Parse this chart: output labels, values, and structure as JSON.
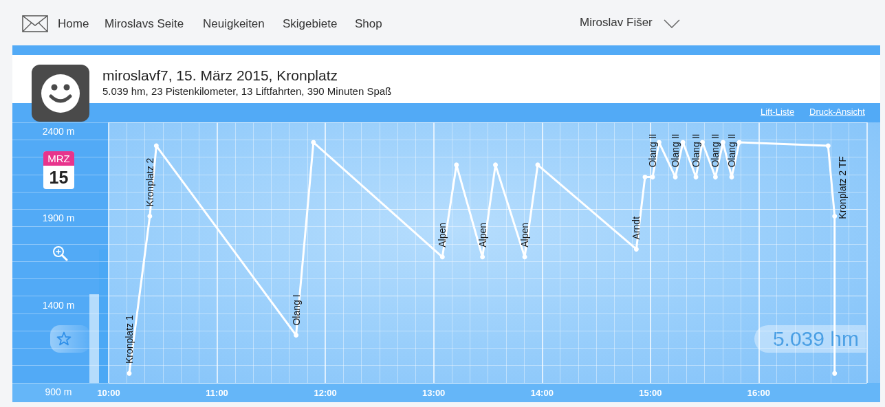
{
  "chart_data": {
    "type": "line",
    "title": "miroslavf7, 15. März 2015, Kronplatz",
    "subtitle": "5.039 hm, 23 Pistenkilometer, 13 Liftfahrten, 390 Minuten Spaß",
    "x": [
      10.19,
      10.38,
      10.44,
      11.73,
      11.89,
      13.08,
      13.21,
      13.45,
      13.57,
      13.84,
      13.96,
      14.87,
      14.95,
      15.02,
      15.08,
      15.23,
      15.3,
      15.42,
      15.48,
      15.6,
      15.67,
      15.75,
      15.82,
      16.64,
      16.7,
      16.7
    ],
    "series": [
      {
        "color": "#ffffff",
        "values": [
          955,
          1860,
          2265,
          1175,
          2285,
          1625,
          2155,
          1625,
          2155,
          1625,
          2155,
          1670,
          2085,
          2085,
          2285,
          2085,
          2285,
          2085,
          2285,
          2085,
          2285,
          2085,
          2285,
          2265,
          1860,
          955
        ]
      }
    ],
    "xlim": [
      10,
      17
    ],
    "xticks": [
      {
        "value": 10,
        "label": "10:00"
      },
      {
        "value": 11,
        "label": "11:00"
      },
      {
        "value": 12,
        "label": "12:00"
      },
      {
        "value": 13,
        "label": "13:00"
      },
      {
        "value": 14,
        "label": "14:00"
      },
      {
        "value": 15,
        "label": "15:00"
      },
      {
        "value": 16,
        "label": "16:00"
      }
    ],
    "ylim": [
      900,
      2400
    ],
    "yticks": [
      {
        "value": 900,
        "label": "900 m"
      },
      {
        "value": 1000,
        "label": null
      },
      {
        "value": 1100,
        "label": null
      },
      {
        "value": 1200,
        "label": null
      },
      {
        "value": 1300,
        "label": null
      },
      {
        "value": 1400,
        "label": "1400 m"
      },
      {
        "value": 1500,
        "label": null
      },
      {
        "value": 1600,
        "label": null
      },
      {
        "value": 1700,
        "label": null
      },
      {
        "value": 1800,
        "label": null
      },
      {
        "value": 1900,
        "label": "1900 m"
      },
      {
        "value": 2000,
        "label": null
      },
      {
        "value": 2100,
        "label": null
      },
      {
        "value": 2200,
        "label": null
      },
      {
        "value": 2300,
        "label": null
      },
      {
        "value": 2400,
        "label": "2400 m"
      }
    ],
    "grid": true,
    "marker": "circle",
    "line_style": "solid",
    "annotations": [
      "Home",
      "Miroslavs Seite",
      "Neuigkeiten",
      "Skigebiete",
      "Shop",
      "Miroslav Fišer",
      "Lift-Liste",
      "Druck-Ansicht",
      "MRZ",
      "15",
      "5.039 hm",
      {
        "text": "Kronplatz 1",
        "x": 10.19,
        "y": 955
      },
      {
        "text": "Kronplatz 2",
        "x": 10.38,
        "y": 1860
      },
      {
        "text": "Olang I",
        "x": 11.73,
        "y": 1175
      },
      {
        "text": "Alpen",
        "x": 13.08,
        "y": 1625
      },
      {
        "text": "Alpen",
        "x": 13.45,
        "y": 1625
      },
      {
        "text": "Alpen",
        "x": 13.84,
        "y": 1625
      },
      {
        "text": "Arndt",
        "x": 14.87,
        "y": 1670
      },
      {
        "text": "Olang II",
        "x": 15.02,
        "y": 2085
      },
      {
        "text": "Olang II",
        "x": 15.23,
        "y": 2085
      },
      {
        "text": "Olang II",
        "x": 15.42,
        "y": 2085
      },
      {
        "text": "Olang II",
        "x": 15.6,
        "y": 2085
      },
      {
        "text": "Olang II",
        "x": 15.75,
        "y": 2085
      },
      {
        "text": "Kronplatz 2 TF",
        "x": 16.64,
        "y": 2265
      }
    ]
  }
}
